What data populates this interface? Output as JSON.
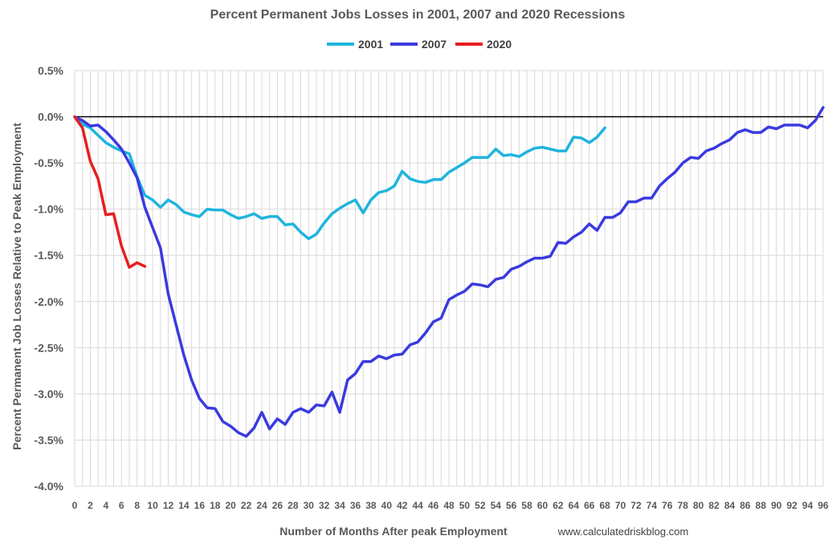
{
  "chart_data": {
    "type": "line",
    "title": "Percent Permanent Jobs Losses in 2001, 2007 and 2020 Recessions",
    "xlabel": "Number of Months After peak Employment",
    "ylabel": "Percent Permanent Job Losses Relative to Peak Employment",
    "source": "www.calculatedriskblog.com",
    "xlim": [
      0,
      96
    ],
    "ylim": [
      -4.0,
      0.5
    ],
    "yticks": [
      0.5,
      0.0,
      -0.5,
      -1.0,
      -1.5,
      -2.0,
      -2.5,
      -3.0,
      -3.5,
      -4.0
    ],
    "ytick_labels": [
      "0.5%",
      "0.0%",
      "-0.5%",
      "-1.0%",
      "-1.5%",
      "-2.0%",
      "-2.5%",
      "-3.0%",
      "-3.5%",
      "-4.0%"
    ],
    "xticks": [
      0,
      2,
      4,
      6,
      8,
      10,
      12,
      14,
      16,
      18,
      20,
      22,
      24,
      26,
      28,
      30,
      32,
      34,
      36,
      38,
      40,
      42,
      44,
      46,
      48,
      50,
      52,
      54,
      56,
      58,
      60,
      62,
      64,
      66,
      68,
      70,
      72,
      74,
      76,
      78,
      80,
      82,
      84,
      86,
      88,
      90,
      92,
      94,
      96
    ],
    "xtick_labels": [
      "0",
      "2",
      "4",
      "6",
      "8",
      "10",
      "12",
      "14",
      "16",
      "18",
      "20",
      "22",
      "24",
      "26",
      "28",
      "30",
      "32",
      "34",
      "36",
      "38",
      "40",
      "42",
      "44",
      "46",
      "48",
      "50",
      "52",
      "54",
      "56",
      "58",
      "60",
      "62",
      "64",
      "66",
      "68",
      "70",
      "72",
      "74",
      "76",
      "78",
      "80",
      "82",
      "84",
      "86",
      "88",
      "90",
      "92",
      "94",
      "96"
    ],
    "grid": true,
    "legend_position": "top",
    "zero_line": true,
    "series": [
      {
        "name": "2001",
        "color": "#1fb4de",
        "x": [
          0,
          1,
          2,
          3,
          4,
          5,
          6,
          7,
          8,
          9,
          10,
          11,
          12,
          13,
          14,
          15,
          16,
          17,
          18,
          19,
          20,
          21,
          22,
          23,
          24,
          25,
          26,
          27,
          28,
          29,
          30,
          31,
          32,
          33,
          34,
          35,
          36,
          37,
          38,
          39,
          40,
          41,
          42,
          43,
          44,
          45,
          46,
          47,
          48,
          49,
          50,
          51,
          52,
          53,
          54,
          55,
          56,
          57,
          58,
          59,
          60,
          61,
          62,
          63,
          64,
          65,
          66,
          67,
          68
        ],
        "values": [
          0.0,
          -0.08,
          -0.12,
          -0.2,
          -0.28,
          -0.33,
          -0.37,
          -0.4,
          -0.65,
          -0.85,
          -0.9,
          -0.98,
          -0.9,
          -0.95,
          -1.03,
          -1.06,
          -1.08,
          -1.0,
          -1.01,
          -1.01,
          -1.06,
          -1.1,
          -1.08,
          -1.05,
          -1.1,
          -1.08,
          -1.08,
          -1.17,
          -1.16,
          -1.25,
          -1.32,
          -1.27,
          -1.15,
          -1.05,
          -0.99,
          -0.94,
          -0.9,
          -1.04,
          -0.9,
          -0.82,
          -0.8,
          -0.75,
          -0.59,
          -0.67,
          -0.7,
          -0.71,
          -0.68,
          -0.68,
          -0.6,
          -0.55,
          -0.5,
          -0.44,
          -0.44,
          -0.44,
          -0.35,
          -0.42,
          -0.41,
          -0.43,
          -0.38,
          -0.34,
          -0.33,
          -0.35,
          -0.37,
          -0.37,
          -0.22,
          -0.23,
          -0.28,
          -0.22,
          -0.12
        ]
      },
      {
        "name": "2007",
        "color": "#3a3ae0",
        "x": [
          0,
          1,
          2,
          3,
          4,
          5,
          6,
          7,
          8,
          9,
          10,
          11,
          12,
          13,
          14,
          15,
          16,
          17,
          18,
          19,
          20,
          21,
          22,
          23,
          24,
          25,
          26,
          27,
          28,
          29,
          30,
          31,
          32,
          33,
          34,
          35,
          36,
          37,
          38,
          39,
          40,
          41,
          42,
          43,
          44,
          45,
          46,
          47,
          48,
          49,
          50,
          51,
          52,
          53,
          54,
          55,
          56,
          57,
          58,
          59,
          60,
          61,
          62,
          63,
          64,
          65,
          66,
          67,
          68,
          69,
          70,
          71,
          72,
          73,
          74,
          75,
          76,
          77,
          78,
          79,
          80,
          81,
          82,
          83,
          84,
          85,
          86,
          87,
          88,
          89,
          90,
          91,
          92,
          93,
          94,
          95,
          96
        ],
        "values": [
          0.0,
          -0.04,
          -0.1,
          -0.09,
          -0.16,
          -0.25,
          -0.35,
          -0.5,
          -0.66,
          -0.98,
          -1.2,
          -1.42,
          -1.92,
          -2.25,
          -2.58,
          -2.85,
          -3.05,
          -3.15,
          -3.16,
          -3.3,
          -3.35,
          -3.42,
          -3.46,
          -3.37,
          -3.2,
          -3.38,
          -3.27,
          -3.33,
          -3.2,
          -3.16,
          -3.2,
          -3.12,
          -3.13,
          -2.98,
          -3.2,
          -2.85,
          -2.78,
          -2.65,
          -2.65,
          -2.59,
          -2.62,
          -2.58,
          -2.57,
          -2.47,
          -2.44,
          -2.34,
          -2.22,
          -2.18,
          -1.98,
          -1.93,
          -1.89,
          -1.81,
          -1.82,
          -1.84,
          -1.76,
          -1.74,
          -1.65,
          -1.62,
          -1.57,
          -1.53,
          -1.53,
          -1.51,
          -1.36,
          -1.37,
          -1.3,
          -1.25,
          -1.16,
          -1.23,
          -1.09,
          -1.09,
          -1.04,
          -0.92,
          -0.92,
          -0.88,
          -0.88,
          -0.75,
          -0.67,
          -0.6,
          -0.5,
          -0.44,
          -0.45,
          -0.37,
          -0.34,
          -0.29,
          -0.25,
          -0.17,
          -0.14,
          -0.17,
          -0.17,
          -0.11,
          -0.13,
          -0.09,
          -0.09,
          -0.09,
          -0.12,
          -0.04,
          0.1
        ]
      },
      {
        "name": "2020",
        "color": "#e81e1e",
        "x": [
          0,
          1,
          2,
          3,
          4,
          5,
          6,
          7,
          8,
          9
        ],
        "values": [
          0.0,
          -0.12,
          -0.48,
          -0.67,
          -1.06,
          -1.05,
          -1.4,
          -1.63,
          -1.58,
          -1.62
        ]
      }
    ]
  }
}
